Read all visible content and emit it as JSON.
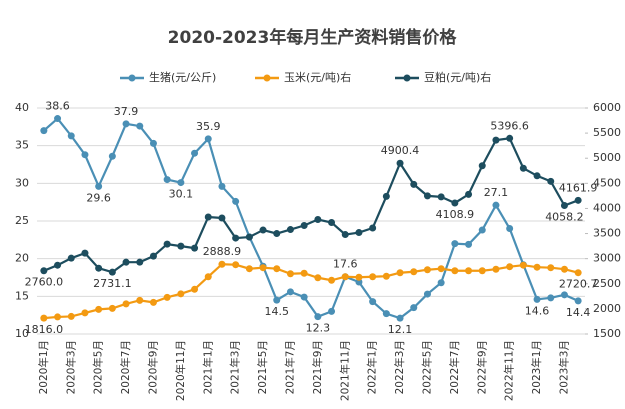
{
  "chart_data": {
    "type": "line",
    "title": "2020-2023年每月生产资料销售价格",
    "categories": [
      "2020年1月",
      null,
      "2020年3月",
      null,
      "2020年5月",
      null,
      "2020年7月",
      null,
      "2020年9月",
      null,
      "2020年11月",
      null,
      "2021年1月",
      null,
      "2021年3月",
      null,
      "2021年5月",
      null,
      "2021年7月",
      null,
      "2021年9月",
      null,
      "2021年11月",
      null,
      "2022年1月",
      null,
      "2022年3月",
      null,
      "2022年5月",
      null,
      "2022年7月",
      null,
      "2022年9月",
      null,
      "2022年11月",
      null,
      "2023年1月",
      null,
      "2023年3月",
      null
    ],
    "series": [
      {
        "name": "生猪(元/公斤)",
        "color": "#4a8fb5",
        "axis": "y",
        "values": [
          37.0,
          38.6,
          36.3,
          33.8,
          29.6,
          33.6,
          37.9,
          37.6,
          35.3,
          30.5,
          30.1,
          34.0,
          35.9,
          29.6,
          27.6,
          22.9,
          19.0,
          14.5,
          15.6,
          14.9,
          12.3,
          13.0,
          17.6,
          16.9,
          14.3,
          12.7,
          12.1,
          13.5,
          15.3,
          16.8,
          22.0,
          21.9,
          23.8,
          27.1,
          24.0,
          19.2,
          14.6,
          14.8,
          15.2,
          14.4
        ],
        "value_labels": [
          null,
          "38.6",
          null,
          null,
          "29.6",
          null,
          "37.9",
          null,
          null,
          null,
          "30.1",
          null,
          "35.9",
          null,
          null,
          null,
          null,
          "14.5",
          null,
          null,
          "12.3",
          null,
          "17.6",
          null,
          null,
          null,
          "12.1",
          null,
          null,
          null,
          null,
          null,
          null,
          "27.1",
          null,
          null,
          "14.6",
          null,
          null,
          "14.4"
        ]
      },
      {
        "name": "玉米(元/吨)右",
        "color": "#f39a12",
        "axis": "y2",
        "values": [
          1816.0,
          1840,
          1850,
          1920,
          1990,
          2010,
          2100,
          2170,
          2130,
          2230,
          2300,
          2390,
          2640,
          2888.9,
          2880,
          2800,
          2820,
          2800,
          2700,
          2710,
          2620,
          2570,
          2640,
          2630,
          2640,
          2650,
          2720,
          2740,
          2780,
          2800,
          2760,
          2760,
          2760,
          2790,
          2840,
          2870,
          2830,
          2820,
          2790,
          2720.7
        ],
        "value_labels": [
          "1816.0",
          null,
          null,
          null,
          null,
          null,
          null,
          null,
          null,
          null,
          null,
          null,
          null,
          "2888.9",
          null,
          null,
          null,
          null,
          null,
          null,
          null,
          null,
          null,
          null,
          null,
          null,
          null,
          null,
          null,
          null,
          null,
          null,
          null,
          null,
          null,
          null,
          null,
          null,
          null,
          "2720.7"
        ]
      },
      {
        "name": "豆粕(元/吨)右",
        "color": "#1d4d5e",
        "axis": "y2",
        "values": [
          2760.0,
          2870,
          3010,
          3110,
          2810,
          2731.1,
          2930,
          2930,
          3050,
          3290,
          3250,
          3210,
          3830,
          3810,
          3410,
          3430,
          3570,
          3500,
          3580,
          3660,
          3780,
          3720,
          3480,
          3520,
          3610,
          4240,
          4900.4,
          4480,
          4250,
          4230,
          4108.9,
          4280,
          4850,
          5360,
          5396.6,
          4800,
          4650,
          4540,
          4058.2,
          4161.9
        ],
        "value_labels": [
          "2760.0",
          null,
          null,
          null,
          null,
          "2731.1",
          null,
          null,
          null,
          null,
          null,
          null,
          null,
          null,
          null,
          null,
          null,
          null,
          null,
          null,
          null,
          null,
          null,
          null,
          null,
          null,
          "4900.4",
          null,
          null,
          null,
          "4108.9",
          null,
          null,
          null,
          "5396.6",
          null,
          null,
          null,
          "4058.2",
          "4161.9"
        ]
      }
    ],
    "ylim": [
      10,
      40
    ],
    "yticks": [
      10,
      15,
      20,
      25,
      30,
      35,
      40
    ],
    "y2lim": [
      1500,
      6000
    ],
    "y2ticks": [
      1500,
      2000,
      2500,
      3000,
      3500,
      4000,
      4500,
      5000,
      5500,
      6000
    ],
    "grid": true,
    "legend": "top"
  }
}
